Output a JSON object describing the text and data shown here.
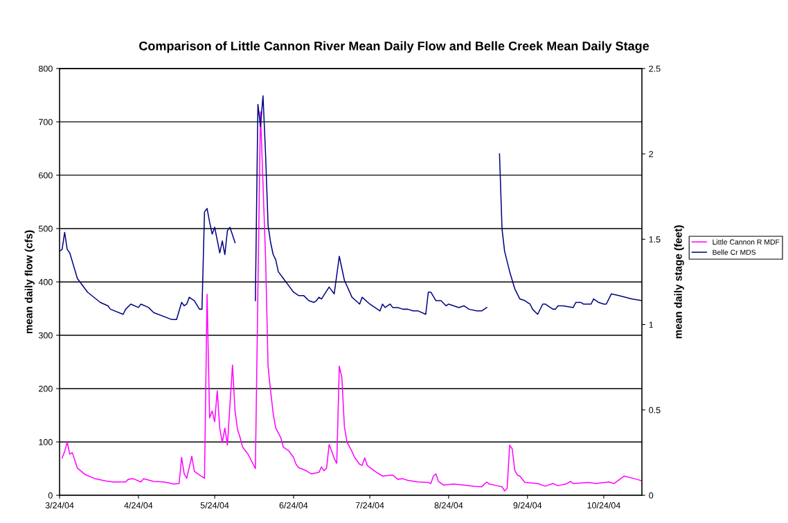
{
  "chart_data": {
    "type": "line",
    "title": "Comparison of Little Cannon River Mean Daily Flow and Belle Creek Mean Daily Stage",
    "ylabel": "mean daily flow (cfs)",
    "y2label": "mean daily stage (feet)",
    "xlim": [
      "2004-03-24",
      "2004-11-08"
    ],
    "xticks": [
      {
        "value": "2004-03-24",
        "label": "3/24/04"
      },
      {
        "value": "2004-04-24",
        "label": "4/24/04"
      },
      {
        "value": "2004-05-24",
        "label": "5/24/04"
      },
      {
        "value": "2004-06-24",
        "label": "6/24/04"
      },
      {
        "value": "2004-07-24",
        "label": "7/24/04"
      },
      {
        "value": "2004-08-24",
        "label": "8/24/04"
      },
      {
        "value": "2004-09-24",
        "label": "9/24/04"
      },
      {
        "value": "2004-10-24",
        "label": "10/24/04"
      }
    ],
    "ylim": [
      0,
      800
    ],
    "yticks": [
      0,
      100,
      200,
      300,
      400,
      500,
      600,
      700,
      800
    ],
    "y2lim": [
      0,
      2.5
    ],
    "y2ticks": [
      0,
      0.5,
      1,
      1.5,
      2,
      2.5
    ],
    "grid": "y",
    "legend": "right",
    "marker": "none",
    "line_style": "solid",
    "series": [
      {
        "name": "Little Cannon R MDF",
        "color": "#ff00ff",
        "x": [
          "2004-03-25",
          "2004-03-26",
          "2004-03-27",
          "2004-03-28",
          "2004-03-29",
          "2004-03-31",
          "2004-04-03",
          "2004-04-07",
          "2004-04-11",
          "2004-04-14",
          "2004-04-19",
          "2004-04-20",
          "2004-04-22",
          "2004-04-25",
          "2004-04-26",
          "2004-04-30",
          "2004-05-04",
          "2004-05-08",
          "2004-05-10",
          "2004-05-11",
          "2004-05-12",
          "2004-05-13",
          "2004-05-15",
          "2004-05-16",
          "2004-05-18",
          "2004-05-20",
          "2004-05-21",
          "2004-05-22",
          "2004-05-23",
          "2004-05-24",
          "2004-05-25",
          "2004-05-26",
          "2004-05-27",
          "2004-05-28",
          "2004-05-29",
          "2004-05-31",
          "2004-06-01",
          "2004-06-02",
          "2004-06-03",
          "2004-06-04",
          "2004-06-06",
          "2004-06-07",
          "2004-06-09",
          "2004-06-11",
          "2004-06-13",
          "2004-06-14",
          "2004-06-15",
          "2004-06-16",
          "2004-06-17",
          "2004-06-19",
          "2004-06-20",
          "2004-06-22",
          "2004-06-24",
          "2004-06-25",
          "2004-06-26",
          "2004-06-29",
          "2004-07-01",
          "2004-07-04",
          "2004-07-05",
          "2004-07-06",
          "2004-07-07",
          "2004-07-08",
          "2004-07-09",
          "2004-07-10",
          "2004-07-11",
          "2004-07-12",
          "2004-07-13",
          "2004-07-14",
          "2004-07-15",
          "2004-07-17",
          "2004-07-18",
          "2004-07-20",
          "2004-07-21",
          "2004-07-22",
          "2004-07-23",
          "2004-07-26",
          "2004-07-29",
          "2004-08-02",
          "2004-08-04",
          "2004-08-06",
          "2004-08-08",
          "2004-08-12",
          "2004-08-16",
          "2004-08-17",
          "2004-08-18",
          "2004-08-19",
          "2004-08-20",
          "2004-08-22",
          "2004-08-26",
          "2004-08-30",
          "2004-09-03",
          "2004-09-06",
          "2004-09-08",
          "2004-09-09",
          "2004-09-12",
          "2004-09-14",
          "2004-09-15",
          "2004-09-16",
          "2004-09-17",
          "2004-09-18",
          "2004-09-19",
          "2004-09-20",
          "2004-09-21",
          "2004-09-23",
          "2004-09-28",
          "2004-10-01",
          "2004-10-04",
          "2004-10-06",
          "2004-10-09",
          "2004-10-11",
          "2004-10-12",
          "2004-10-18",
          "2004-10-21",
          "2004-10-26",
          "2004-10-28",
          "2004-11-01",
          "2004-11-06",
          "2004-11-08"
        ],
        "values": [
          70,
          82,
          100,
          77,
          80,
          51,
          39,
          31,
          27,
          25,
          25,
          30,
          31,
          25,
          31,
          26,
          25,
          21,
          22,
          71,
          40,
          32,
          73,
          45,
          38,
          32,
          377,
          145,
          158,
          138,
          196,
          125,
          99,
          126,
          94,
          244,
          158,
          123,
          108,
          90,
          78,
          69,
          50,
          719,
          447,
          241,
          195,
          153,
          126,
          108,
          90,
          84,
          71,
          58,
          52,
          46,
          40,
          43,
          53,
          46,
          51,
          95,
          83,
          69,
          60,
          242,
          221,
          129,
          100,
          82,
          71,
          58,
          56,
          70,
          56,
          45,
          36,
          38,
          30,
          31,
          28,
          25,
          24,
          22,
          36,
          40,
          26,
          19,
          21,
          19,
          17,
          16,
          25,
          21,
          18,
          16,
          8,
          13,
          94,
          87,
          47,
          38,
          36,
          24,
          22,
          17,
          22,
          18,
          21,
          26,
          22,
          24,
          22,
          25,
          22,
          36,
          30,
          27
        ]
      },
      {
        "name": "Belle Cr MDS",
        "color": "#000080",
        "axis": "y2",
        "x": [
          "2004-03-24",
          "2004-03-25",
          "2004-03-26",
          "2004-03-27",
          "2004-03-28",
          "2004-03-31",
          "2004-04-04",
          "2004-04-09",
          "2004-04-12",
          "2004-04-13",
          "2004-04-18",
          "2004-04-19",
          "2004-04-21",
          "2004-04-24",
          "2004-04-25",
          "2004-04-28",
          "2004-04-30",
          "2004-05-07",
          "2004-05-09",
          "2004-05-11",
          "2004-05-12",
          "2004-05-13",
          "2004-05-14",
          "2004-05-16",
          "2004-05-18",
          "2004-05-19",
          "2004-05-20",
          "2004-05-21",
          "2004-05-22",
          "2004-05-23",
          "2004-05-24",
          "2004-05-26",
          "2004-05-27",
          "2004-05-28",
          "2004-05-29",
          "2004-05-30",
          "2004-06-01",
          "2004-06-04",
          "2004-06-09",
          "2004-06-10",
          "2004-06-11",
          "2004-06-12",
          "2004-06-13",
          "2004-06-14",
          "2004-06-15",
          "2004-06-16",
          "2004-06-17",
          "2004-06-18",
          "2004-06-20",
          "2004-06-22",
          "2004-06-24",
          "2004-06-26",
          "2004-06-28",
          "2004-06-30",
          "2004-07-02",
          "2004-07-03",
          "2004-07-04",
          "2004-07-05",
          "2004-07-08",
          "2004-07-10",
          "2004-07-12",
          "2004-07-14",
          "2004-07-17",
          "2004-07-20",
          "2004-07-21",
          "2004-07-24",
          "2004-07-28",
          "2004-07-29",
          "2004-07-30",
          "2004-07-31",
          "2004-08-01",
          "2004-08-02",
          "2004-08-04",
          "2004-08-06",
          "2004-08-08",
          "2004-08-10",
          "2004-08-12",
          "2004-08-15",
          "2004-08-16",
          "2004-08-17",
          "2004-08-19",
          "2004-08-21",
          "2004-08-23",
          "2004-08-24",
          "2004-08-26",
          "2004-08-28",
          "2004-08-30",
          "2004-09-01",
          "2004-09-04",
          "2004-09-06",
          "2004-09-08",
          "2004-09-10",
          "2004-09-13",
          "2004-09-14",
          "2004-09-15",
          "2004-09-17",
          "2004-09-19",
          "2004-09-21",
          "2004-09-23",
          "2004-09-24",
          "2004-09-25",
          "2004-09-26",
          "2004-09-28",
          "2004-09-30",
          "2004-10-01",
          "2004-10-02",
          "2004-10-03",
          "2004-10-04",
          "2004-10-05",
          "2004-10-06",
          "2004-10-08",
          "2004-10-12",
          "2004-10-13",
          "2004-10-15",
          "2004-10-16",
          "2004-10-19",
          "2004-10-20",
          "2004-10-22",
          "2004-10-24",
          "2004-10-25",
          "2004-10-27",
          "2004-10-30",
          "2004-11-04",
          "2004-11-08"
        ],
        "values": [
          1.43,
          1.44,
          1.54,
          1.44,
          1.42,
          1.27,
          1.19,
          1.13,
          1.11,
          1.09,
          1.06,
          1.09,
          1.12,
          1.1,
          1.12,
          1.1,
          1.07,
          1.03,
          1.03,
          1.13,
          1.11,
          1.12,
          1.16,
          1.14,
          1.09,
          1.09,
          1.66,
          1.68,
          1.6,
          1.53,
          1.57,
          1.42,
          1.49,
          1.41,
          1.55,
          1.57,
          1.48,
          null,
          1.14,
          2.29,
          2.16,
          2.34,
          2.0,
          1.58,
          1.48,
          1.41,
          1.38,
          1.31,
          1.27,
          1.23,
          1.19,
          1.17,
          1.17,
          1.14,
          1.13,
          1.14,
          1.16,
          1.15,
          1.22,
          1.18,
          1.4,
          1.26,
          1.16,
          1.12,
          1.16,
          1.12,
          1.08,
          1.12,
          1.1,
          1.11,
          1.12,
          1.1,
          1.1,
          1.09,
          1.09,
          1.08,
          1.08,
          1.06,
          1.19,
          1.19,
          1.14,
          1.14,
          1.11,
          1.12,
          1.11,
          1.1,
          1.11,
          1.09,
          1.08,
          1.08,
          1.1,
          null,
          2.0,
          1.56,
          1.43,
          1.31,
          1.21,
          1.15,
          1.14,
          1.13,
          1.12,
          1.09,
          1.06,
          1.12,
          1.12,
          1.11,
          1.1,
          1.09,
          1.09,
          1.11,
          1.11,
          1.1,
          1.13,
          1.13,
          1.12,
          1.12,
          1.15,
          1.13,
          1.12,
          1.12,
          1.18,
          1.17,
          1.15,
          1.14
        ]
      }
    ]
  }
}
